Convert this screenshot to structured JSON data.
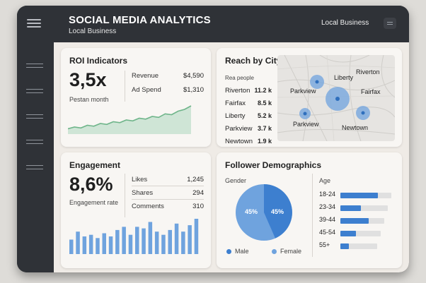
{
  "header": {
    "title": "SOCIAL MEDIA ANALYTICS",
    "subtitle": "Local Business",
    "account_label": "Local Business"
  },
  "roi": {
    "title": "ROI Indicators",
    "value": "3,5x",
    "period_label": "Pestan month",
    "revenue_label": "Revenue",
    "revenue_value": "$4,590",
    "adspend_label": "Ad Spend",
    "adspend_value": "$1,310",
    "trend": [
      3,
      4,
      3.5,
      5,
      4.5,
      6,
      5.5,
      7,
      6.5,
      8,
      7.5,
      9,
      8.5,
      10,
      9.5,
      11.5,
      11,
      13,
      14,
      16
    ]
  },
  "reach": {
    "title": "Reach by City",
    "subheader": "Rea people",
    "cities": [
      {
        "name": "Riverton",
        "value": "11.2 k"
      },
      {
        "name": "Fairfax",
        "value": "8.5 k"
      },
      {
        "name": "Liberty",
        "value": "5.2 k"
      },
      {
        "name": "Parkview",
        "value": "3.7 k"
      },
      {
        "name": "Newtown",
        "value": "1.9 k"
      }
    ],
    "map_labels": {
      "liberty": "Liberty",
      "riverton": "Riverton",
      "parkview_top": "Parkview",
      "fairfax": "Fairfax",
      "parkview_bottom": "Parkview",
      "newtown": "Newtown"
    }
  },
  "engagement": {
    "title": "Engagement",
    "value": "8,6%",
    "rate_label": "Engagement rate",
    "stats": [
      {
        "label": "Likes",
        "value": "1,245"
      },
      {
        "label": "Shares",
        "value": "294"
      },
      {
        "label": "Comments",
        "value": "310"
      }
    ],
    "bars": [
      0.45,
      0.7,
      0.55,
      0.6,
      0.5,
      0.65,
      0.55,
      0.75,
      0.85,
      0.6,
      0.85,
      0.8,
      1.0,
      0.7,
      0.6,
      0.75,
      0.95,
      0.7,
      0.9,
      1.1
    ]
  },
  "demographics": {
    "title": "Follower Demographics",
    "gender_label": "Gender",
    "age_label": "Age",
    "male_pct_label": "45%",
    "female_pct_label": "45%",
    "male_label": "Male",
    "female_label": "Female",
    "ages": [
      {
        "label": "18-24",
        "fill": 0.73
      },
      {
        "label": "23-34",
        "fill": 0.4
      },
      {
        "label": "39-44",
        "fill": 0.55
      },
      {
        "label": "45-54",
        "fill": 0.3
      },
      {
        "label": "55+",
        "fill": 0.17
      }
    ]
  },
  "colors": {
    "accent_blue": "#3d7fcf",
    "light_blue": "#6fa3de",
    "trend_green": "#6fb58a"
  }
}
